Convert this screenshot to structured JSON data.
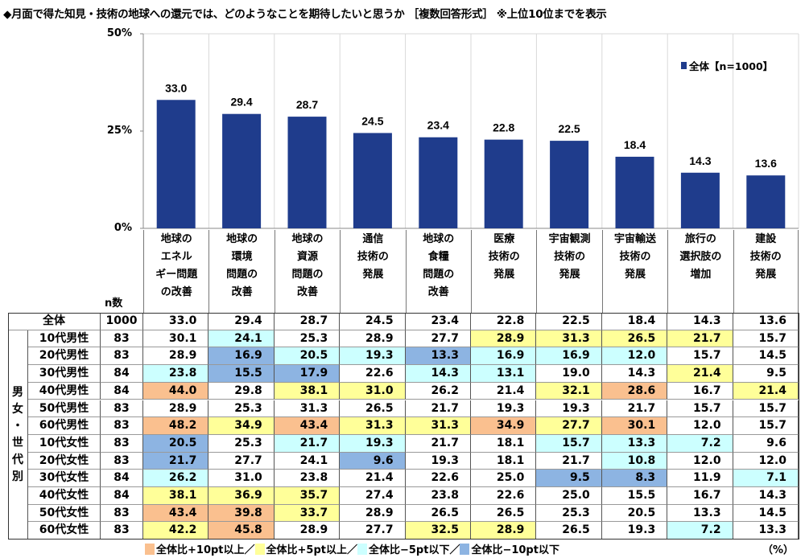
{
  "title": "◆月面で得た知見・技術の地球への還元では、どのようなことを期待したいと思うか ［複数回答形式］ ※上位10位までを表示",
  "chart_data": {
    "type": "bar",
    "categories": [
      "地球の\nエネル\nギー問題\nの改善",
      "地球の\n環境\n問題の\n改善",
      "地球の\n資源\n問題の\n改善",
      "通信\n技術の\n発展",
      "地球の\n食糧\n問題の\n改善",
      "医療\n技術の\n発展",
      "宇宙観測\n技術の\n発展",
      "宇宙輸送\n技術の\n発展",
      "旅行の\n選択肢の\n増加",
      "建設\n技術の\n発展"
    ],
    "series": [
      {
        "name": "全体【n=1000】",
        "values": [
          33.0,
          29.4,
          28.7,
          24.5,
          23.4,
          22.8,
          22.5,
          18.4,
          14.3,
          13.6
        ],
        "color": "#1F3C8C"
      }
    ],
    "ylim": [
      0,
      50
    ],
    "yticks": [
      "0%",
      "25%",
      "50%"
    ],
    "legend": "top-right",
    "grid": "vertical"
  },
  "table": {
    "n_header": "n数",
    "group_label": "男\n女\n・\n世\n代\n別",
    "total": {
      "label": "全体",
      "n": "1000",
      "values": [
        "33.0",
        "29.4",
        "28.7",
        "24.5",
        "23.4",
        "22.8",
        "22.5",
        "18.4",
        "14.3",
        "13.6"
      ]
    },
    "rows": [
      {
        "label": "10代男性",
        "n": "83",
        "values": [
          "30.1",
          "24.1",
          "25.3",
          "28.9",
          "27.7",
          "28.9",
          "31.3",
          "26.5",
          "21.7",
          "15.7"
        ],
        "hl": [
          "",
          "c",
          "",
          "",
          "",
          "y",
          "y",
          "y",
          "y",
          ""
        ]
      },
      {
        "label": "20代男性",
        "n": "83",
        "values": [
          "28.9",
          "16.9",
          "20.5",
          "19.3",
          "13.3",
          "16.9",
          "16.9",
          "12.0",
          "15.7",
          "14.5"
        ],
        "hl": [
          "",
          "b",
          "c",
          "c",
          "b",
          "c",
          "c",
          "c",
          "",
          ""
        ]
      },
      {
        "label": "30代男性",
        "n": "84",
        "values": [
          "23.8",
          "15.5",
          "17.9",
          "22.6",
          "14.3",
          "13.1",
          "19.0",
          "14.3",
          "21.4",
          "9.5"
        ],
        "hl": [
          "c",
          "b",
          "b",
          "",
          "c",
          "c",
          "",
          "",
          "y",
          ""
        ]
      },
      {
        "label": "40代男性",
        "n": "84",
        "values": [
          "44.0",
          "29.8",
          "38.1",
          "31.0",
          "26.2",
          "21.4",
          "32.1",
          "28.6",
          "16.7",
          "21.4"
        ],
        "hl": [
          "o",
          "",
          "y",
          "y",
          "",
          "",
          "y",
          "o",
          "",
          "y"
        ]
      },
      {
        "label": "50代男性",
        "n": "83",
        "values": [
          "28.9",
          "25.3",
          "31.3",
          "26.5",
          "21.7",
          "19.3",
          "19.3",
          "21.7",
          "15.7",
          "15.7"
        ],
        "hl": [
          "",
          "",
          "",
          "",
          "",
          "",
          "",
          "",
          "",
          ""
        ]
      },
      {
        "label": "60代男性",
        "n": "83",
        "values": [
          "48.2",
          "34.9",
          "43.4",
          "31.3",
          "31.3",
          "34.9",
          "27.7",
          "30.1",
          "12.0",
          "15.7"
        ],
        "hl": [
          "o",
          "y",
          "o",
          "y",
          "y",
          "o",
          "y",
          "o",
          "",
          ""
        ]
      },
      {
        "label": "10代女性",
        "n": "83",
        "values": [
          "20.5",
          "25.3",
          "21.7",
          "19.3",
          "21.7",
          "18.1",
          "15.7",
          "13.3",
          "7.2",
          "9.6"
        ],
        "hl": [
          "b",
          "",
          "c",
          "c",
          "",
          "",
          "c",
          "c",
          "c",
          ""
        ]
      },
      {
        "label": "20代女性",
        "n": "83",
        "values": [
          "21.7",
          "27.7",
          "24.1",
          "9.6",
          "19.3",
          "18.1",
          "21.7",
          "10.8",
          "12.0",
          "12.0"
        ],
        "hl": [
          "b",
          "",
          "",
          "b",
          "",
          "",
          "",
          "c",
          "",
          ""
        ]
      },
      {
        "label": "30代女性",
        "n": "84",
        "values": [
          "26.2",
          "31.0",
          "23.8",
          "21.4",
          "22.6",
          "25.0",
          "9.5",
          "8.3",
          "11.9",
          "7.1"
        ],
        "hl": [
          "c",
          "",
          "",
          "",
          "",
          "",
          "b",
          "b",
          "",
          "c"
        ]
      },
      {
        "label": "40代女性",
        "n": "84",
        "values": [
          "38.1",
          "36.9",
          "35.7",
          "27.4",
          "23.8",
          "22.6",
          "25.0",
          "15.5",
          "16.7",
          "14.3"
        ],
        "hl": [
          "y",
          "y",
          "y",
          "",
          "",
          "",
          "",
          "",
          "",
          ""
        ]
      },
      {
        "label": "50代女性",
        "n": "83",
        "values": [
          "43.4",
          "39.8",
          "33.7",
          "28.9",
          "26.5",
          "26.5",
          "25.3",
          "20.5",
          "13.3",
          "14.5"
        ],
        "hl": [
          "o",
          "o",
          "y",
          "",
          "",
          "",
          "",
          "",
          "",
          ""
        ]
      },
      {
        "label": "60代女性",
        "n": "83",
        "values": [
          "42.2",
          "45.8",
          "28.9",
          "27.7",
          "32.5",
          "28.9",
          "26.5",
          "19.3",
          "7.2",
          "13.3"
        ],
        "hl": [
          "y",
          "o",
          "",
          "",
          "y",
          "y",
          "",
          "",
          "c",
          ""
        ]
      }
    ]
  },
  "highlight_colors": {
    "o": "#FAC08F",
    "y": "#FFFF99",
    "c": "#CCFFFF",
    "b": "#8DB4E2"
  },
  "legend_bottom": [
    {
      "key": "o",
      "label": "全体比+10pt以上／"
    },
    {
      "key": "y",
      "label": "全体比+5pt以上／"
    },
    {
      "key": "c",
      "label": "全体比−5pt以下／"
    },
    {
      "key": "b",
      "label": "全体比−10pt以下"
    }
  ],
  "unit": "（%）"
}
